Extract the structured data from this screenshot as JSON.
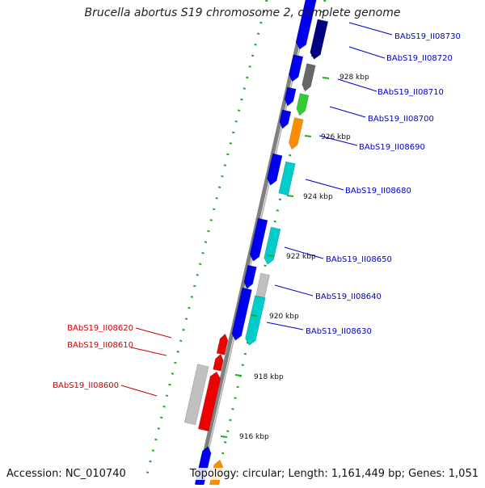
{
  "title": "Brucella abortus S19 chromosome 2, complete genome",
  "footer": {
    "accession": "Accession: NC_010740",
    "topology": "Topology: circular; Length: 1,161,449 bp; Genes: 1,051"
  },
  "colors": {
    "backbone": "#808080",
    "dots": "#22aa22",
    "label_blue": "#0000cc",
    "label_red": "#cc0000",
    "blue": "#0000ee",
    "navy": "#000080",
    "darkgray": "#666666",
    "green": "#33cc33",
    "orange": "#ff8c00",
    "cyan": "#00cccc",
    "lightgray": "#c0c0c0",
    "red": "#ee0000"
  },
  "ticks": [
    "928 kbp",
    "926 kbp",
    "924 kbp",
    "922 kbp",
    "920 kbp",
    "918 kbp",
    "916 kbp"
  ],
  "gene_labels": [
    {
      "text": "BAbS19_II08730",
      "color": "blue"
    },
    {
      "text": "BAbS19_II08720",
      "color": "blue"
    },
    {
      "text": "BAbS19_II08710",
      "color": "blue"
    },
    {
      "text": "BAbS19_II08700",
      "color": "blue"
    },
    {
      "text": "BAbS19_II08690",
      "color": "blue"
    },
    {
      "text": "BAbS19_II08680",
      "color": "blue"
    },
    {
      "text": "BAbS19_II08650",
      "color": "blue"
    },
    {
      "text": "BAbS19_II08640",
      "color": "blue"
    },
    {
      "text": "BAbS19_II08630",
      "color": "blue"
    },
    {
      "text": "BAbS19_II08620",
      "color": "red"
    },
    {
      "text": "BAbS19_II08610",
      "color": "red"
    },
    {
      "text": "BAbS19_II08600",
      "color": "red"
    }
  ]
}
